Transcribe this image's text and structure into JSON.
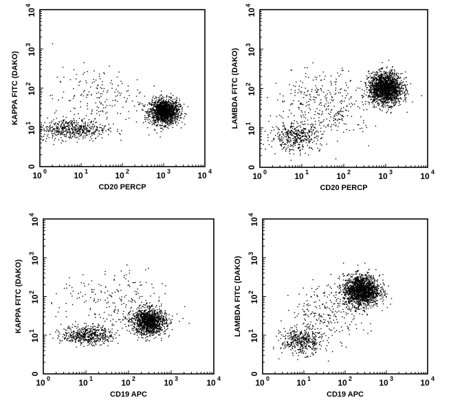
{
  "chart_data": [
    {
      "type": "scatter",
      "title": "",
      "xlabel": "CD20 PERCP",
      "ylabel": "KAPPA FITC (DAKO)",
      "xscale": "log",
      "yscale": "log",
      "xlim": [
        1,
        10000
      ],
      "ylim": [
        1,
        10000
      ],
      "ticks": [
        {
          "base": "10",
          "exp": "0"
        },
        {
          "base": "10",
          "exp": "1"
        },
        {
          "base": "10",
          "exp": "2"
        },
        {
          "base": "10",
          "exp": "3"
        },
        {
          "base": "10",
          "exp": "4"
        }
      ],
      "y_bottom_tick_label": "0",
      "grid": false,
      "clusters": [
        {
          "name": "",
          "x": 1050,
          "y": 25,
          "sx": 0.18,
          "sy": 0.16,
          "n": 1500
        },
        {
          "name": "",
          "x": 6,
          "y": 9,
          "sx": 0.42,
          "sy": 0.13,
          "n": 520
        },
        {
          "name": "",
          "x": 25,
          "y": 60,
          "sx": 0.55,
          "sy": 0.38,
          "n": 180
        }
      ]
    },
    {
      "type": "scatter",
      "title": "",
      "xlabel": "CD20 PERCP",
      "ylabel": "LAMBDA FITC (DAKO)",
      "xscale": "log",
      "yscale": "log",
      "xlim": [
        1,
        10000
      ],
      "ylim": [
        1,
        10000
      ],
      "ticks": [
        {
          "base": "10",
          "exp": "0"
        },
        {
          "base": "10",
          "exp": "1"
        },
        {
          "base": "10",
          "exp": "2"
        },
        {
          "base": "10",
          "exp": "3"
        },
        {
          "base": "10",
          "exp": "4"
        }
      ],
      "y_bottom_tick_label": "0",
      "grid": false,
      "clusters": [
        {
          "name": "",
          "x": 1000,
          "y": 100,
          "sx": 0.2,
          "sy": 0.2,
          "n": 1800
        },
        {
          "name": "",
          "x": 7,
          "y": 6,
          "sx": 0.3,
          "sy": 0.18,
          "n": 420
        },
        {
          "name": "",
          "x": 60,
          "y": 25,
          "sx": 0.45,
          "sy": 0.35,
          "n": 200
        },
        {
          "name": "",
          "x": 20,
          "y": 80,
          "sx": 0.5,
          "sy": 0.3,
          "n": 130
        }
      ]
    },
    {
      "type": "scatter",
      "title": "",
      "xlabel": "CD19 APC",
      "ylabel": "KAPPA FITC (DAKO)",
      "xscale": "log",
      "yscale": "log",
      "xlim": [
        1,
        10000
      ],
      "ylim": [
        1,
        10000
      ],
      "ticks": [
        {
          "base": "10",
          "exp": "0"
        },
        {
          "base": "10",
          "exp": "1"
        },
        {
          "base": "10",
          "exp": "2"
        },
        {
          "base": "10",
          "exp": "3"
        },
        {
          "base": "10",
          "exp": "4"
        }
      ],
      "y_bottom_tick_label": "0",
      "grid": false,
      "clusters": [
        {
          "name": "",
          "x": 300,
          "y": 22,
          "sx": 0.2,
          "sy": 0.17,
          "n": 1300
        },
        {
          "name": "",
          "x": 11,
          "y": 10,
          "sx": 0.3,
          "sy": 0.12,
          "n": 520
        },
        {
          "name": "",
          "x": 40,
          "y": 70,
          "sx": 0.6,
          "sy": 0.4,
          "n": 200
        }
      ]
    },
    {
      "type": "scatter",
      "title": "",
      "xlabel": "CD19 APC",
      "ylabel": "LAMBDA FITC (DAKO)",
      "xscale": "log",
      "yscale": "log",
      "xlim": [
        1,
        10000
      ],
      "ylim": [
        1,
        10000
      ],
      "ticks": [
        {
          "base": "10",
          "exp": "0"
        },
        {
          "base": "10",
          "exp": "1"
        },
        {
          "base": "10",
          "exp": "2"
        },
        {
          "base": "10",
          "exp": "3"
        },
        {
          "base": "10",
          "exp": "4"
        }
      ],
      "y_bottom_tick_label": "0",
      "grid": false,
      "clusters": [
        {
          "name": "",
          "x": 250,
          "y": 140,
          "sx": 0.22,
          "sy": 0.2,
          "n": 1700
        },
        {
          "name": "",
          "x": 9,
          "y": 7,
          "sx": 0.25,
          "sy": 0.17,
          "n": 420
        },
        {
          "name": "",
          "x": 40,
          "y": 40,
          "sx": 0.45,
          "sy": 0.35,
          "n": 230
        }
      ]
    }
  ]
}
